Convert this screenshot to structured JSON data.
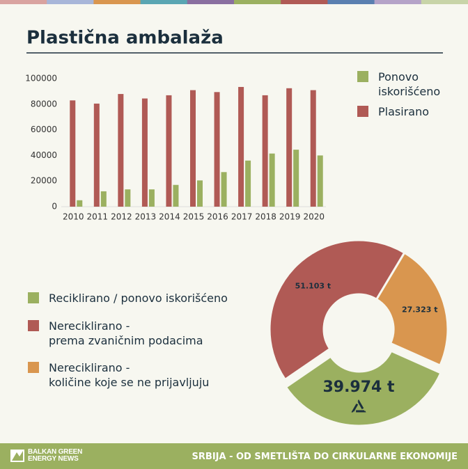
{
  "chart_data": [
    {
      "type": "bar",
      "title": "Plastična ambalaža",
      "categories": [
        "2010",
        "2011",
        "2012",
        "2013",
        "2014",
        "2015",
        "2016",
        "2017",
        "2018",
        "2019",
        "2020"
      ],
      "series": [
        {
          "name": "Ponovo\niskorišćeno",
          "color": "#9bb060",
          "values": [
            5000,
            12000,
            13500,
            13500,
            17000,
            20500,
            27000,
            36000,
            41500,
            44500,
            40000
          ]
        },
        {
          "name": "Plasirano",
          "color": "#b05a55",
          "values": [
            83000,
            80500,
            88000,
            84500,
            87000,
            91000,
            89500,
            93500,
            87000,
            92500,
            91000
          ]
        }
      ],
      "ylim": [
        0,
        100000
      ],
      "yticks": [
        0,
        20000,
        40000,
        60000,
        80000,
        100000
      ],
      "grid": false,
      "legend": "right"
    },
    {
      "type": "donut",
      "categories": [
        "Reciklirano / ponovo iskorišćeno",
        "Nereciklirano -\nprema zvaničnim podacima",
        "Nereciklirano -\nkoličine koje se ne prijavljuju"
      ],
      "values": [
        39974,
        51103,
        27323
      ],
      "value_labels": [
        "39.974 t",
        "51.103 t",
        "27.323 t"
      ],
      "colors": [
        "#9bb060",
        "#b05a55",
        "#d9964f"
      ],
      "legend": "left"
    }
  ],
  "footer": {
    "brand": "BALKAN GREEN\nENERGY NEWS",
    "tagline": "SRBIJA - OD SMETLIŠTA DO CIRKULARNE EKONOMIJE"
  }
}
